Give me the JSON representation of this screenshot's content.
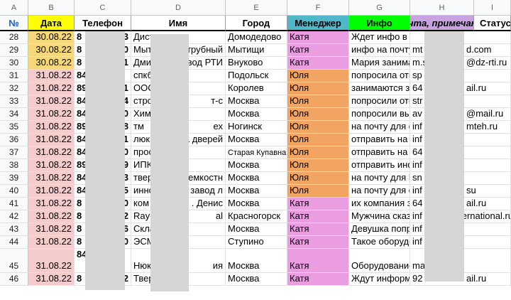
{
  "column_letters": [
    "A",
    "B",
    "C",
    "D",
    "E",
    "F",
    "G",
    "H",
    "I"
  ],
  "headers": [
    "№",
    "Дата",
    "Телефон",
    "Имя",
    "Город",
    "Менеджер",
    "Инфо",
    "Почта, примечание",
    "Статус"
  ],
  "colors": {
    "header_date": "#ffff00",
    "header_manager": "#4fb8c8",
    "header_info": "#00ff00",
    "header_email": "#c9a3e0",
    "date_yellow": "#f6d77a",
    "date_pink": "#f4cccc",
    "manager_katya": "#ea9de0",
    "manager_yulia": "#f2a463"
  },
  "rows": [
    {
      "num": "28",
      "date": "30.08.22",
      "phone_l": "8",
      "phone_r": "3",
      "name_l": "Дист",
      "city": "Домодедово",
      "manager": "Катя",
      "info": "Ждет инфо в вс",
      "email_l": "",
      "email_r": "",
      "date_color": "yellow",
      "mgr_color": "katya"
    },
    {
      "num": "29",
      "date": "30.08.22",
      "phone_l": "8",
      "phone_r": "0",
      "name_l": "Мыт",
      "name_r": "трубный",
      "city": "Мытищи",
      "manager": "Катя",
      "info": "инфо на почту",
      "email_l": "mt",
      "email_r": "d.com",
      "date_color": "yellow",
      "mgr_color": "katya"
    },
    {
      "num": "30",
      "date": "30.08.22",
      "phone_l": "8",
      "phone_r": "1",
      "name_l": "Дми",
      "name_r": "авод РТИ",
      "city": "Внуково",
      "manager": "Катя",
      "info": "Мария занимае",
      "email_l": "m.s",
      "email_r": "@dz-rti.ru",
      "date_color": "yellow",
      "mgr_color": "katya"
    },
    {
      "num": "31",
      "date": "31.08.22",
      "phone_l": "84",
      "phone_r": "",
      "name_l": "спкб",
      "city": "Подольск",
      "manager": "Юля",
      "info": "попросила отпр",
      "email_l": "sp",
      "email_r": "",
      "date_color": "pink",
      "mgr_color": "yulia"
    },
    {
      "num": "32",
      "date": "31.08.22",
      "phone_l": "89",
      "phone_r": "1",
      "name_l": "ООС",
      "city": "Королев",
      "manager": "Юля",
      "info": "занимаются зак",
      "email_l": "64",
      "email_r": "ail.ru",
      "date_color": "pink",
      "mgr_color": "yulia"
    },
    {
      "num": "33",
      "date": "31.08.22",
      "phone_l": "84",
      "phone_r": "4",
      "name_l": "стро",
      "name_r": "т-с",
      "city": "Москва",
      "manager": "Юля",
      "info": "попросили отпр",
      "email_l": "str",
      "email_r": "",
      "date_color": "pink",
      "mgr_color": "yulia"
    },
    {
      "num": "34",
      "date": "31.08.22",
      "phone_l": "84",
      "phone_r": "0",
      "name_l": "Хим",
      "city": "Москва",
      "manager": "Юля",
      "info": "попросили выс",
      "email_l": "av",
      "email_r": "@mail.ru",
      "date_color": "pink",
      "mgr_color": "yulia"
    },
    {
      "num": "35",
      "date": "31.08.22",
      "phone_l": "89",
      "phone_r": "8",
      "name_l": "тм",
      "name_r": "ех",
      "city": "Ногинск",
      "manager": "Юля",
      "info": "на почту для от",
      "email_l": "inf",
      "email_r": "mteh.ru",
      "date_color": "pink",
      "mgr_color": "yulia"
    },
    {
      "num": "36",
      "date": "31.08.22",
      "phone_l": "84",
      "phone_r": "1",
      "name_l": "люк",
      "name_r": "ка дверей",
      "city": "Москва",
      "manager": "Юля",
      "info": "отправить на по",
      "email_l": "inf",
      "email_r": "",
      "date_color": "pink",
      "mgr_color": "yulia"
    },
    {
      "num": "37",
      "date": "31.08.22",
      "phone_l": "84",
      "phone_r": "0",
      "name_l": "прос",
      "city": "Старая Купавна",
      "manager": "Юля",
      "info": "отправить на пс",
      "email_l": "64",
      "email_r": "",
      "date_color": "pink",
      "mgr_color": "yulia"
    },
    {
      "num": "38",
      "date": "31.08.22",
      "phone_l": "89",
      "phone_r": "9",
      "name_l": "ИПК",
      "city": "Москва",
      "manager": "Юля",
      "info": "отправить инфо",
      "email_l": "inf",
      "email_r": "",
      "date_color": "pink",
      "mgr_color": "yulia"
    },
    {
      "num": "39",
      "date": "31.08.22",
      "phone_l": "84",
      "phone_r": "3",
      "name_l": "твер",
      "name_r": "д емкостн",
      "city": "Москва",
      "manager": "Юля",
      "info": "на почту для На",
      "email_l": "sn",
      "email_r": "",
      "date_color": "pink",
      "mgr_color": "yulia"
    },
    {
      "num": "40",
      "date": "31.08.22",
      "phone_l": "84",
      "phone_r": "5",
      "name_l": "инно",
      "name_r": "й завод л",
      "city": "Москва",
      "manager": "Юля",
      "info": "на почту для оз",
      "email_l": "inf",
      "email_r": "su",
      "date_color": "pink",
      "mgr_color": "yulia"
    },
    {
      "num": "41",
      "date": "31.08.22",
      "phone_l": "8",
      "phone_r": "0",
      "name_l": "ком",
      "name_r": ". Денис",
      "city": "Москва",
      "manager": "Катя",
      "info": "их компания за",
      "email_l": "64",
      "email_r": "ail.ru",
      "date_color": "pink",
      "mgr_color": "katya"
    },
    {
      "num": "42",
      "date": "31.08.22",
      "phone_l": "8",
      "phone_r": "2",
      "name_l": "Ray-",
      "name_r": "al",
      "city": "Красногорск",
      "manager": "Катя",
      "info": "Мужчина сказал",
      "email_l": "inf",
      "email_r": "ernational.ru",
      "date_color": "pink",
      "mgr_color": "katya"
    },
    {
      "num": "43",
      "date": "31.08.22",
      "phone_l": "8",
      "phone_r": "6",
      "name_l": "Скла",
      "city": "Москва",
      "manager": "Катя",
      "info": "Девушка попрос",
      "email_l": "inf",
      "email_r": "",
      "date_color": "pink",
      "mgr_color": "katya"
    },
    {
      "num": "44",
      "date": "31.08.22",
      "phone_l": "8",
      "phone_r": "0",
      "name_l": "ЭСМ",
      "city": "Ступино",
      "manager": "Катя",
      "info": "Такое оборудов",
      "email_l": "inf",
      "email_r": "",
      "date_color": "pink",
      "mgr_color": "katya"
    },
    {
      "num": "45",
      "date": "31.08.22",
      "phone_l": "84",
      "phone_l2": "(д",
      "phone_r": "",
      "name_l": "Нюк",
      "name_r": "ия",
      "city": "Москва",
      "manager": "Катя",
      "info": "Оборудование",
      "email_l": "ma",
      "email_r": "",
      "date_color": "pink",
      "mgr_color": "katya"
    },
    {
      "num": "46",
      "date": "31.08.22",
      "phone_l": "8",
      "phone_r": "2",
      "name_l": "Твер",
      "city": "Москва",
      "manager": "Катя",
      "info": "Ждут информа",
      "email_l": "92",
      "email_r": "ail.ru",
      "date_color": "pink",
      "mgr_color": "katya"
    }
  ]
}
